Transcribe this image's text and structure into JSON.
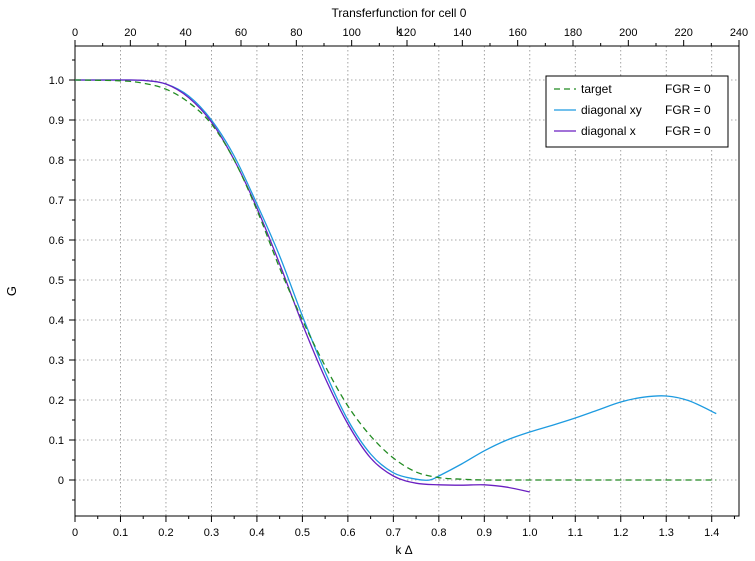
{
  "chart_data": {
    "type": "line",
    "title": "Transferfunction for cell 0",
    "xlabel": "k Δ",
    "ylabel": "G",
    "top_xlabel": "k",
    "xlim": [
      0,
      1.46
    ],
    "ylim": [
      -0.09,
      1.085
    ],
    "top_xlim": [
      0,
      240
    ],
    "x_ticks": [
      "0",
      "0.1",
      "0.2",
      "0.3",
      "0.4",
      "0.5",
      "0.6",
      "0.7",
      "0.8",
      "0.9",
      "1.0",
      "1.1",
      "1.2",
      "1.3",
      "1.4"
    ],
    "y_ticks": [
      "0",
      "0.1",
      "0.2",
      "0.3",
      "0.4",
      "0.5",
      "0.6",
      "0.7",
      "0.8",
      "0.9",
      "1.0"
    ],
    "top_x_ticks": [
      "0",
      "20",
      "40",
      "60",
      "80",
      "100",
      "120",
      "140",
      "160",
      "180",
      "200",
      "220",
      "240"
    ],
    "grid": true,
    "legend_position": "top-right",
    "series": [
      {
        "name": "target",
        "suffix": "FGR = 0",
        "color": "#228b22",
        "dashed": true,
        "x": [
          0,
          0.1,
          0.15,
          0.2,
          0.25,
          0.3,
          0.35,
          0.4,
          0.45,
          0.5,
          0.55,
          0.6,
          0.65,
          0.7,
          0.75,
          0.8,
          0.85,
          0.9,
          1.0,
          1.1,
          1.2,
          1.3,
          1.41
        ],
        "y": [
          1.0,
          0.998,
          0.992,
          0.977,
          0.944,
          0.89,
          0.8,
          0.675,
          0.53,
          0.4,
          0.285,
          0.185,
          0.11,
          0.055,
          0.02,
          0.006,
          0.002,
          0.0,
          0.0,
          0.0,
          0.0,
          0.0,
          0.0
        ]
      },
      {
        "name": "diagonal xy",
        "suffix": "FGR = 0",
        "color": "#1e9be0",
        "dashed": false,
        "x": [
          0,
          0.1,
          0.15,
          0.2,
          0.25,
          0.3,
          0.35,
          0.4,
          0.45,
          0.5,
          0.55,
          0.6,
          0.65,
          0.7,
          0.75,
          0.78,
          0.8,
          0.85,
          0.9,
          0.95,
          1.0,
          1.05,
          1.1,
          1.15,
          1.2,
          1.25,
          1.3,
          1.35,
          1.41
        ],
        "y": [
          1.0,
          1.0,
          0.999,
          0.99,
          0.96,
          0.9,
          0.81,
          0.69,
          0.56,
          0.41,
          0.27,
          0.15,
          0.065,
          0.018,
          0.002,
          0.0,
          0.01,
          0.04,
          0.073,
          0.1,
          0.12,
          0.137,
          0.155,
          0.175,
          0.195,
          0.207,
          0.21,
          0.198,
          0.166
        ]
      },
      {
        "name": "diagonal x",
        "suffix": "FGR = 0",
        "color": "#6a1fc1",
        "dashed": false,
        "x": [
          0,
          0.1,
          0.15,
          0.2,
          0.25,
          0.3,
          0.35,
          0.4,
          0.45,
          0.5,
          0.55,
          0.6,
          0.65,
          0.7,
          0.75,
          0.8,
          0.85,
          0.9,
          0.95,
          1.0
        ],
        "y": [
          1.0,
          1.0,
          0.999,
          0.99,
          0.956,
          0.895,
          0.8,
          0.68,
          0.54,
          0.39,
          0.255,
          0.14,
          0.055,
          0.01,
          -0.008,
          -0.012,
          -0.013,
          -0.012,
          -0.018,
          -0.03
        ]
      }
    ]
  }
}
